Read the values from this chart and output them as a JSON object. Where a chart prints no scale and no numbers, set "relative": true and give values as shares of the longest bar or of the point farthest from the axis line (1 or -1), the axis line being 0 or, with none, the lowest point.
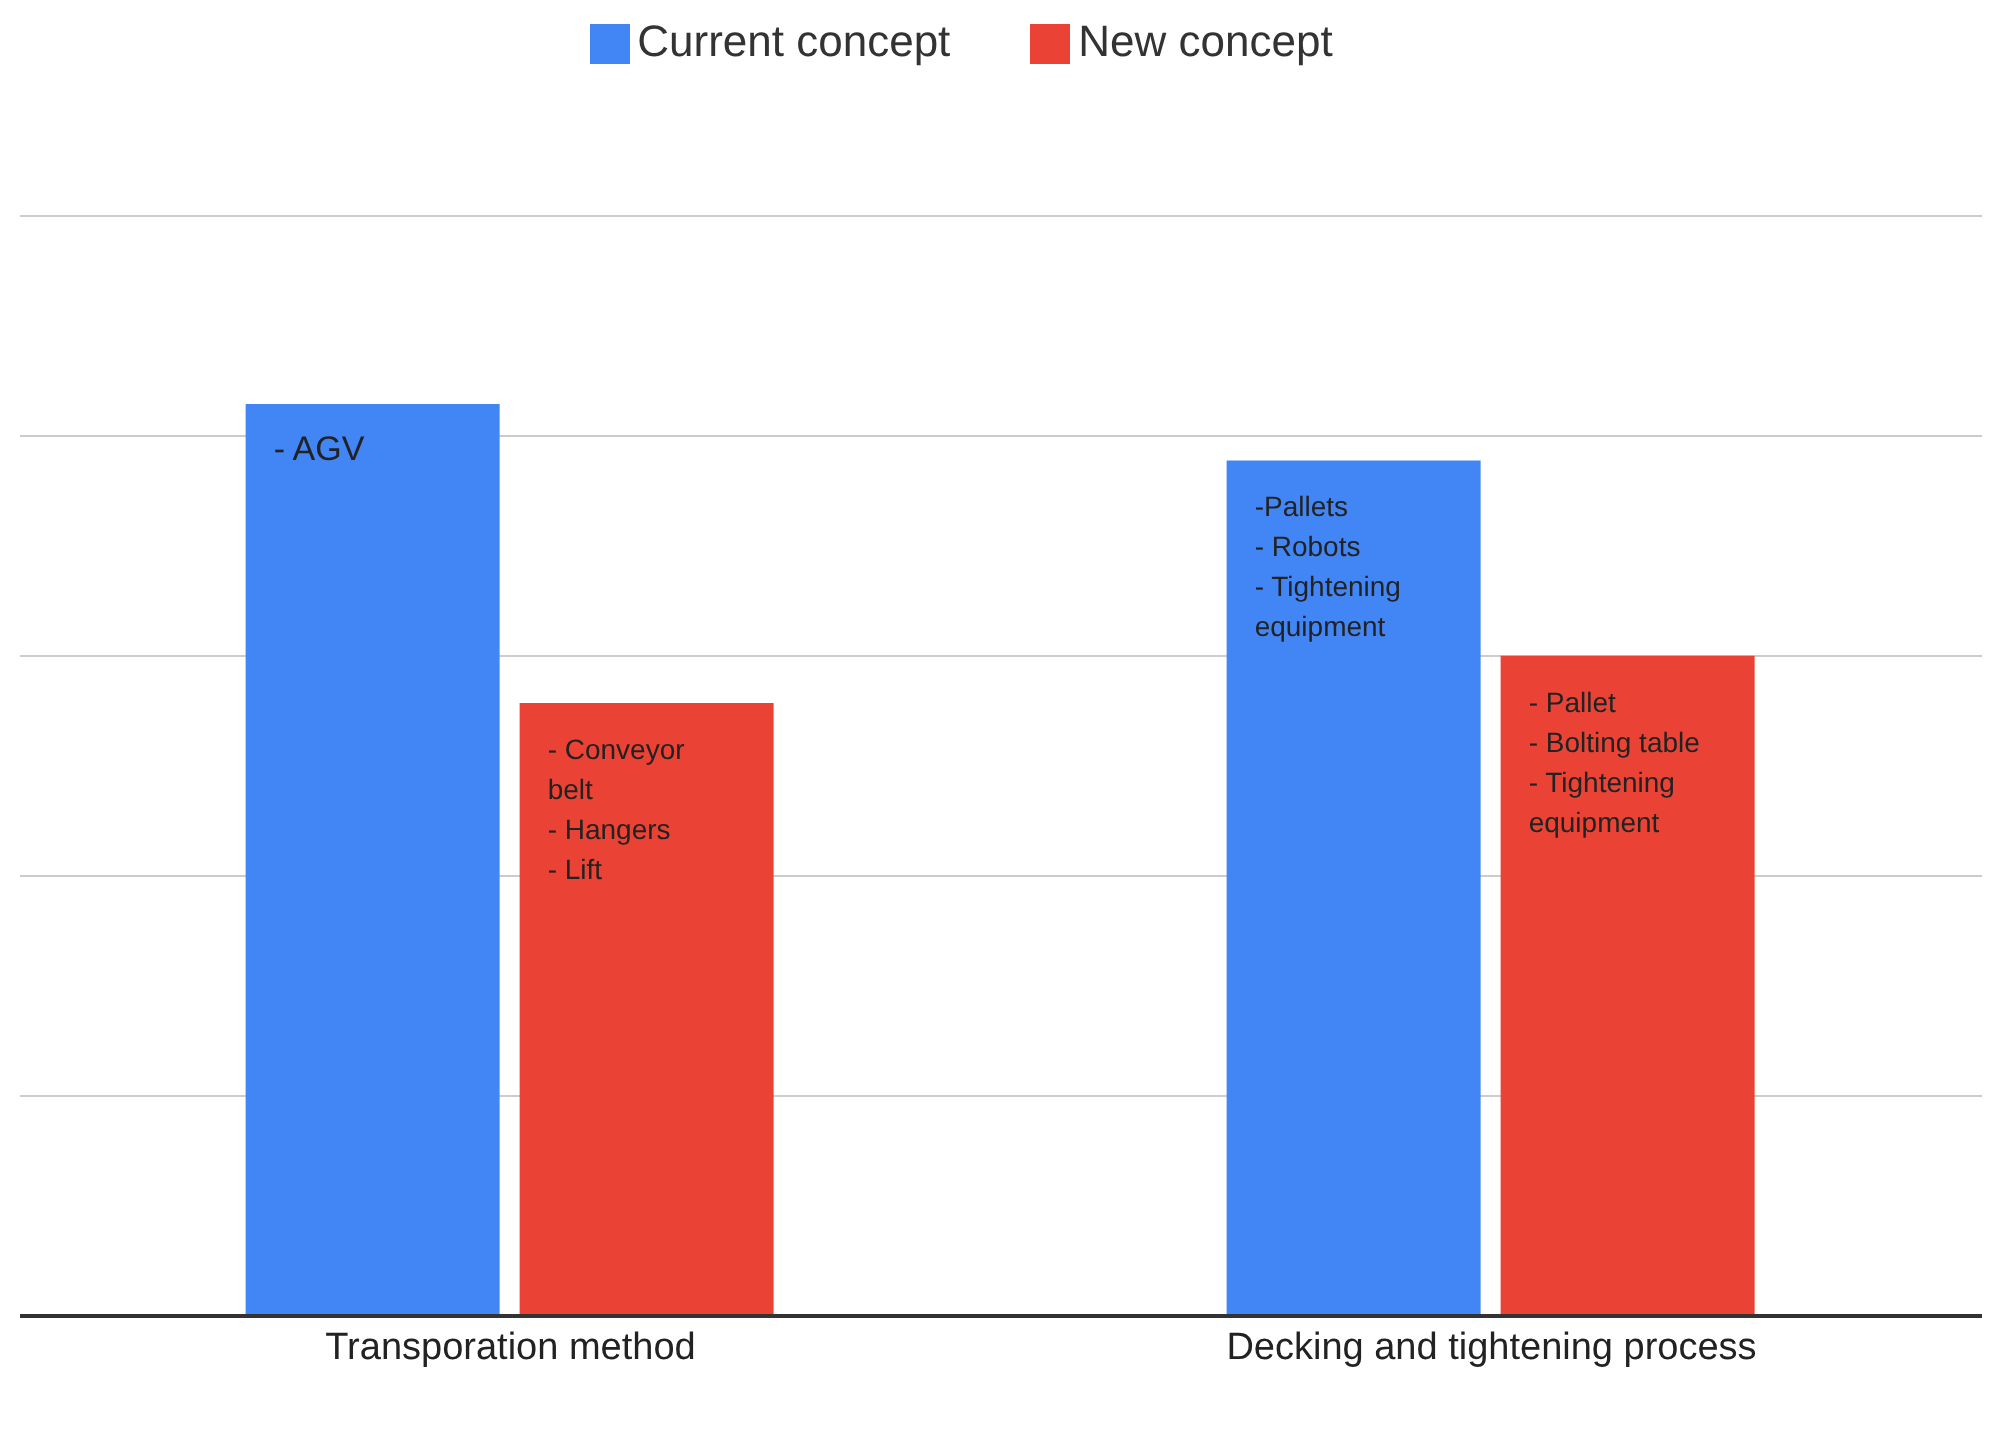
{
  "chart_data": {
    "type": "bar",
    "relative": true,
    "categories": [
      "Transporation method",
      "Decking and tightening process"
    ],
    "series": [
      {
        "name": "Current concept",
        "color": "#4285f4",
        "values": [
          1,
          0.938
        ]
      },
      {
        "name": "New concept",
        "color": "#ea4335",
        "values": [
          0.672,
          0.724
        ]
      }
    ],
    "annotations": [
      "- AGV",
      "- Conveyor\nbelt\n- Hangers\n- Lift",
      "-Pallets\n- Robots\n- Tightening\nequipment",
      "- Pallet\n- Bolting table\n- Tightening\nequipment"
    ],
    "grid": "y",
    "legend": "top"
  }
}
